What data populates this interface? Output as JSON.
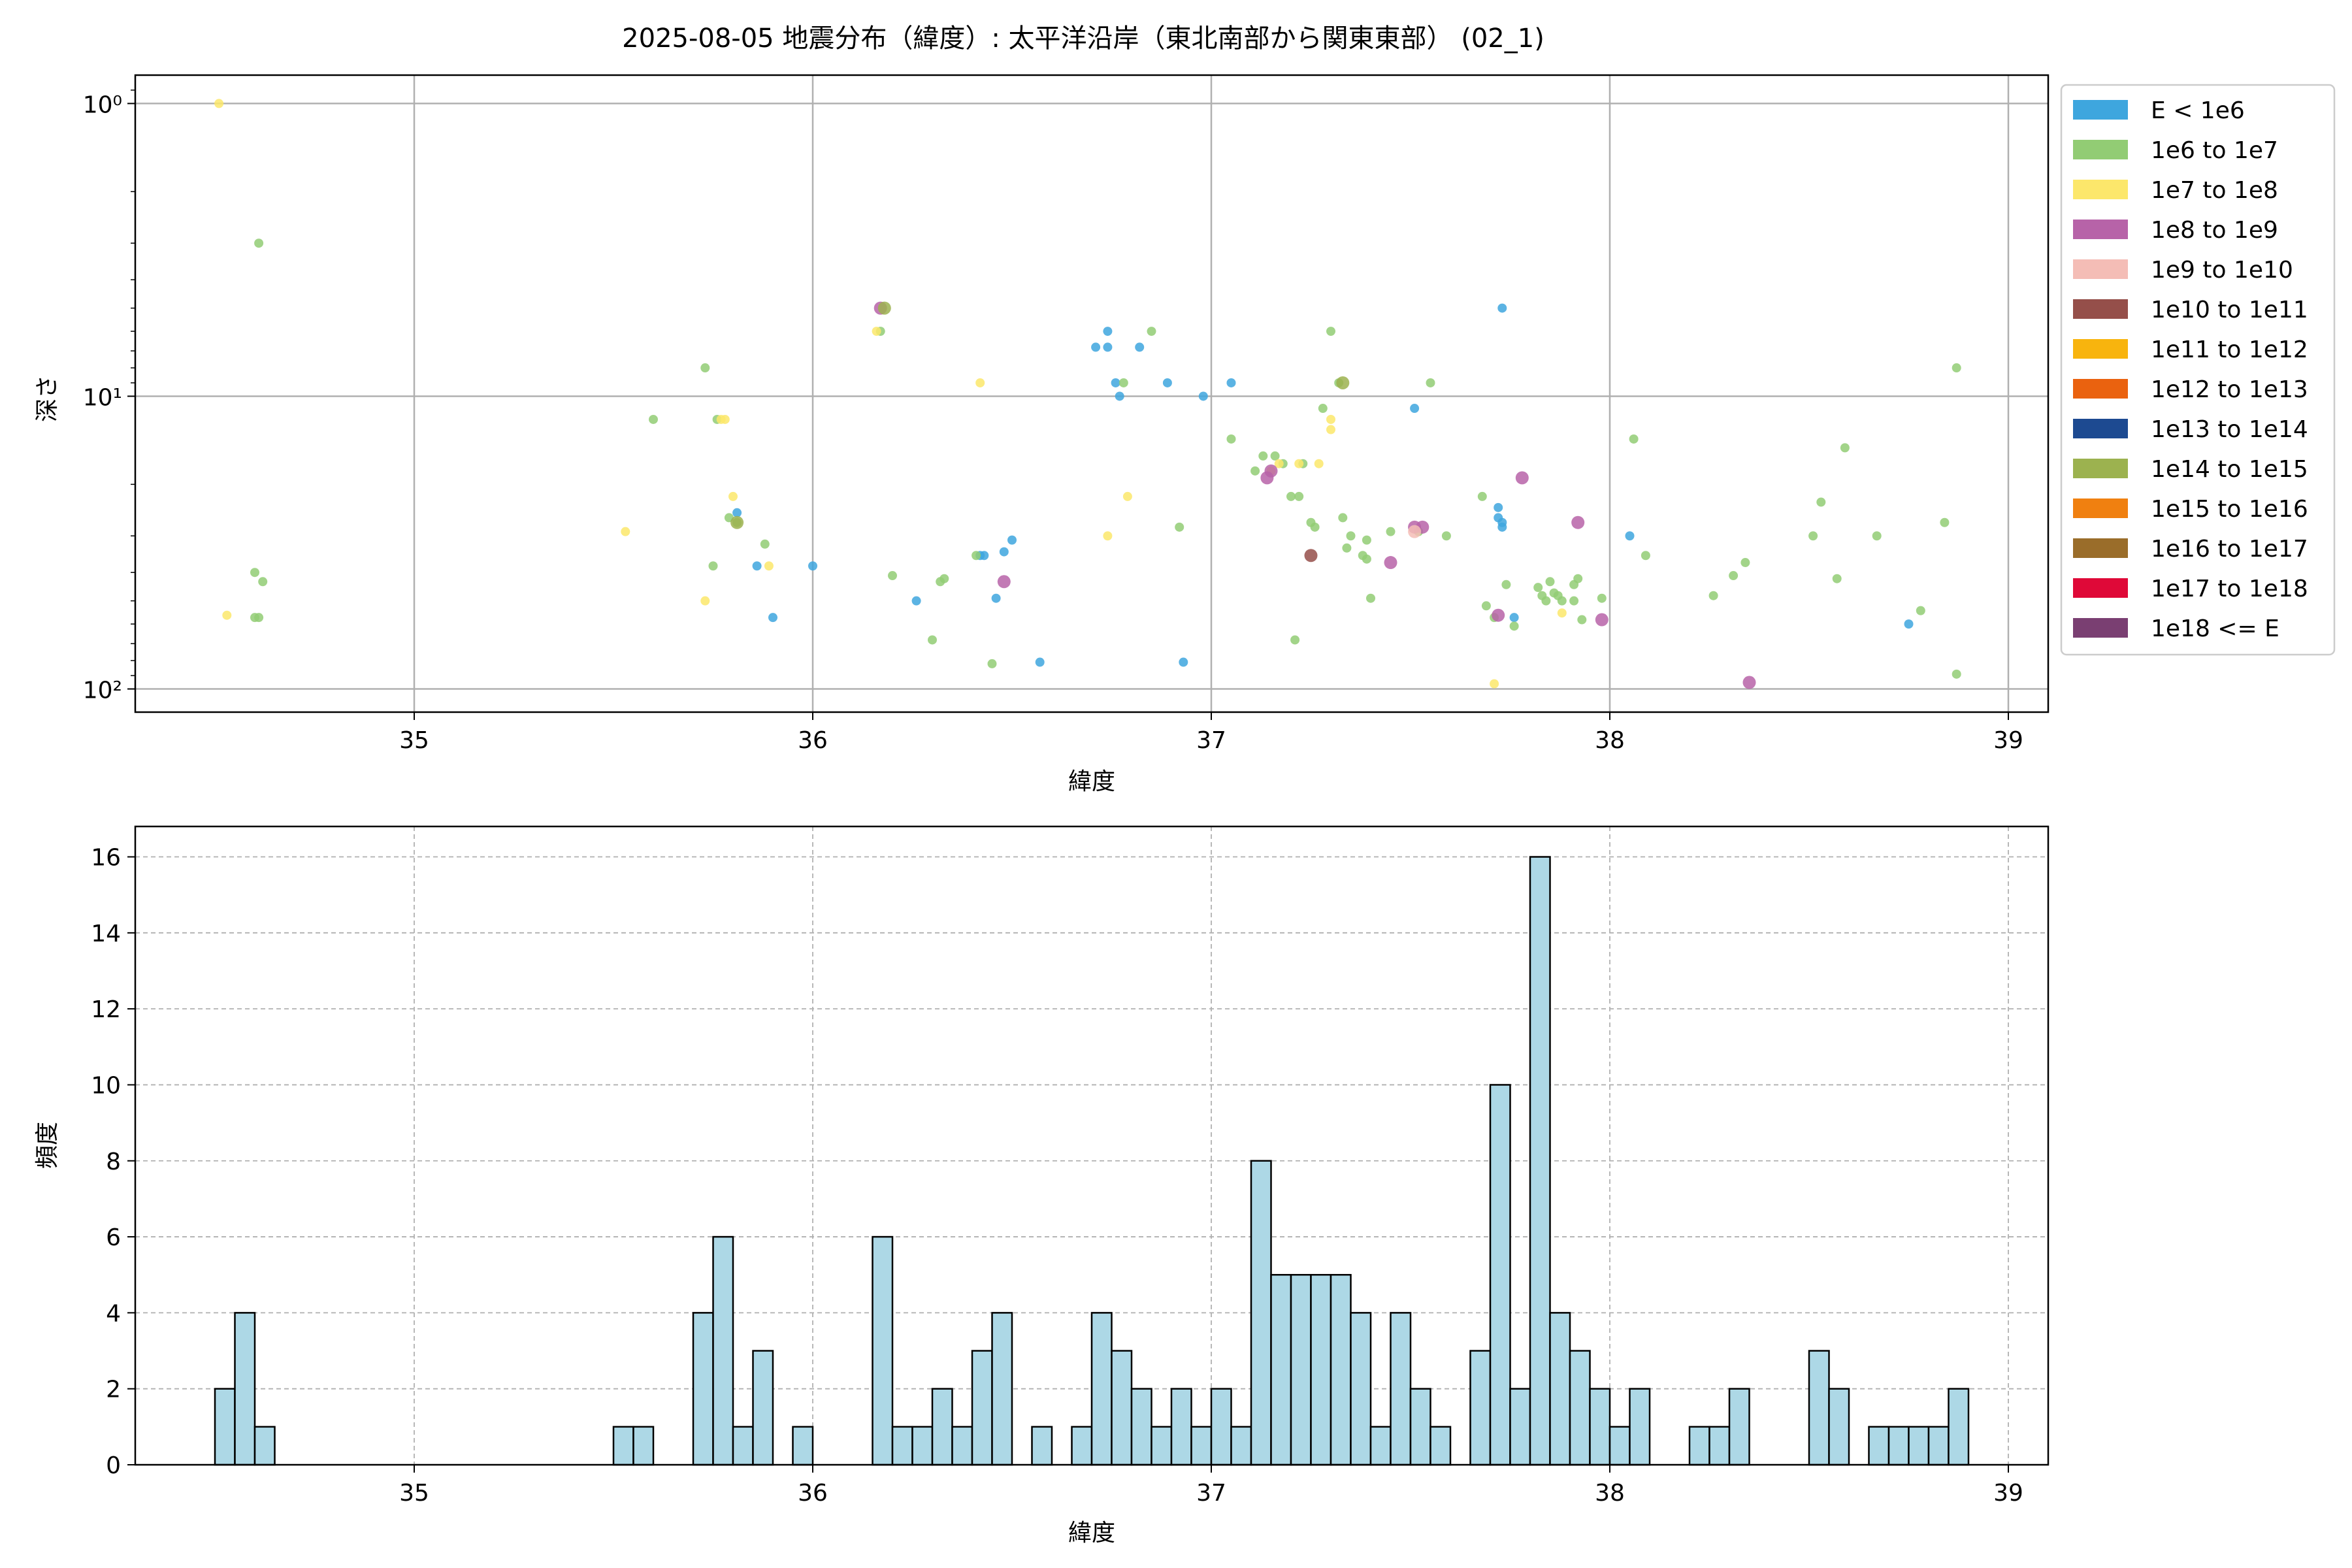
{
  "title": "2025-08-05 地震分布（緯度）: 太平洋沿岸（東北南部から関東東部） (02_1)",
  "chart_data": [
    {
      "type": "scatter",
      "xlabel": "緯度",
      "ylabel": "深さ",
      "xlim": [
        34.3,
        39.1
      ],
      "ylim": [
        120,
        0.8
      ],
      "yscale": "log",
      "y_inverted": true,
      "grid": true,
      "legend_position": "outside-right",
      "x_ticks": [
        35,
        36,
        37,
        38,
        39
      ],
      "x_tick_labels": [
        "35",
        "36",
        "37",
        "38",
        "39"
      ],
      "y_ticks": [
        1,
        10,
        100
      ],
      "y_tick_labels": [
        "10⁰",
        "10¹",
        "10²"
      ],
      "legend": [
        {
          "label": "E < 1e6",
          "color": "#3ea6de"
        },
        {
          "label": "1e6 to 1e7",
          "color": "#92cc74"
        },
        {
          "label": "1e7 to 1e8",
          "color": "#fce76b"
        },
        {
          "label": "1e8 to 1e9",
          "color": "#b763a8"
        },
        {
          "label": "1e9 to 1e10",
          "color": "#f4bdb6"
        },
        {
          "label": "1e10 to 1e11",
          "color": "#954f4a"
        },
        {
          "label": "1e11 to 1e12",
          "color": "#f8b40e"
        },
        {
          "label": "1e12 to 1e13",
          "color": "#ea620f"
        },
        {
          "label": "1e13 to 1e14",
          "color": "#1d4a91"
        },
        {
          "label": "1e14 to 1e15",
          "color": "#9cb24f"
        },
        {
          "label": "1e15 to 1e16",
          "color": "#f08010"
        },
        {
          "label": "1e16 to 1e17",
          "color": "#9a6d2a"
        },
        {
          "label": "1e17 to 1e18",
          "color": "#df0938"
        },
        {
          "label": "1e18 <= E",
          "color": "#7a3f72"
        }
      ],
      "series": [
        {
          "name": "E < 1e6",
          "color": "#3ea6de",
          "points": [
            [
              35.81,
              25
            ],
            [
              35.86,
              38
            ],
            [
              35.9,
              57
            ],
            [
              36.0,
              38
            ],
            [
              36.26,
              50
            ],
            [
              36.42,
              35
            ],
            [
              36.43,
              35
            ],
            [
              36.46,
              49
            ],
            [
              36.48,
              34
            ],
            [
              36.5,
              31
            ],
            [
              36.57,
              81
            ],
            [
              36.71,
              6.8
            ],
            [
              36.74,
              6.8
            ],
            [
              36.74,
              6
            ],
            [
              36.76,
              9
            ],
            [
              36.77,
              10
            ],
            [
              36.82,
              6.8
            ],
            [
              36.89,
              9
            ],
            [
              36.93,
              81
            ],
            [
              36.98,
              10
            ],
            [
              37.05,
              9
            ],
            [
              37.51,
              11
            ],
            [
              37.72,
              24
            ],
            [
              37.72,
              26
            ],
            [
              37.73,
              27
            ],
            [
              37.73,
              28
            ],
            [
              37.76,
              57
            ],
            [
              37.73,
              5
            ],
            [
              38.05,
              30
            ],
            [
              38.75,
              60
            ]
          ]
        },
        {
          "name": "1e6 to 1e7",
          "color": "#92cc74",
          "points": [
            [
              34.61,
              3
            ],
            [
              34.6,
              40
            ],
            [
              34.6,
              57
            ],
            [
              34.62,
              43
            ],
            [
              34.61,
              57
            ],
            [
              35.6,
              12
            ],
            [
              35.73,
              8
            ],
            [
              35.76,
              12
            ],
            [
              35.75,
              38
            ],
            [
              35.79,
              26
            ],
            [
              35.81,
              27
            ],
            [
              35.88,
              32
            ],
            [
              36.17,
              6
            ],
            [
              36.2,
              41
            ],
            [
              36.3,
              68
            ],
            [
              36.32,
              43
            ],
            [
              36.33,
              42
            ],
            [
              36.41,
              35
            ],
            [
              36.45,
              82
            ],
            [
              36.78,
              9
            ],
            [
              36.85,
              6
            ],
            [
              36.92,
              28
            ],
            [
              37.05,
              14
            ],
            [
              37.11,
              18
            ],
            [
              37.13,
              16
            ],
            [
              37.16,
              16
            ],
            [
              37.18,
              17
            ],
            [
              37.2,
              22
            ],
            [
              37.22,
              22
            ],
            [
              37.21,
              68
            ],
            [
              37.23,
              17
            ],
            [
              37.25,
              27
            ],
            [
              37.26,
              28
            ],
            [
              37.28,
              11
            ],
            [
              37.3,
              6
            ],
            [
              37.32,
              9
            ],
            [
              37.33,
              26
            ],
            [
              37.34,
              33
            ],
            [
              37.35,
              30
            ],
            [
              37.38,
              35
            ],
            [
              37.39,
              36
            ],
            [
              37.39,
              31
            ],
            [
              37.4,
              49
            ],
            [
              37.45,
              29
            ],
            [
              37.52,
              29
            ],
            [
              37.55,
              9
            ],
            [
              37.59,
              30
            ],
            [
              37.68,
              22
            ],
            [
              37.69,
              52
            ],
            [
              37.71,
              57
            ],
            [
              37.74,
              44
            ],
            [
              37.76,
              61
            ],
            [
              37.82,
              45
            ],
            [
              37.84,
              50
            ],
            [
              37.83,
              48
            ],
            [
              37.85,
              43
            ],
            [
              37.86,
              47
            ],
            [
              37.87,
              48
            ],
            [
              37.88,
              50
            ],
            [
              37.91,
              44
            ],
            [
              37.92,
              42
            ],
            [
              37.91,
              50
            ],
            [
              37.93,
              58
            ],
            [
              37.98,
              49
            ],
            [
              38.06,
              14
            ],
            [
              38.09,
              35
            ],
            [
              38.26,
              48
            ],
            [
              38.31,
              41
            ],
            [
              38.34,
              37
            ],
            [
              38.51,
              30
            ],
            [
              38.53,
              23
            ],
            [
              38.57,
              42
            ],
            [
              38.59,
              15
            ],
            [
              38.67,
              30
            ],
            [
              38.78,
              54
            ],
            [
              38.84,
              27
            ],
            [
              38.87,
              8
            ],
            [
              38.87,
              89
            ]
          ]
        },
        {
          "name": "1e7 to 1e8",
          "color": "#fce76b",
          "points": [
            [
              34.51,
              1
            ],
            [
              34.53,
              56
            ],
            [
              35.53,
              29
            ],
            [
              35.73,
              50
            ],
            [
              35.77,
              12
            ],
            [
              35.78,
              12
            ],
            [
              35.8,
              22
            ],
            [
              35.89,
              38
            ],
            [
              36.16,
              6
            ],
            [
              36.42,
              9
            ],
            [
              36.74,
              30
            ],
            [
              36.79,
              22
            ],
            [
              37.15,
              18
            ],
            [
              37.17,
              17
            ],
            [
              37.22,
              17
            ],
            [
              37.27,
              17
            ],
            [
              37.3,
              13
            ],
            [
              37.3,
              12
            ],
            [
              37.71,
              96
            ],
            [
              37.88,
              55
            ]
          ]
        },
        {
          "name": "1e8 to 1e9",
          "color": "#b763a8",
          "points": [
            [
              36.17,
              5
            ],
            [
              36.48,
              43
            ],
            [
              37.14,
              19
            ],
            [
              37.15,
              18
            ],
            [
              37.45,
              37
            ],
            [
              37.51,
              28
            ],
            [
              37.53,
              28
            ],
            [
              37.72,
              56
            ],
            [
              37.78,
              19
            ],
            [
              37.92,
              27
            ],
            [
              37.98,
              58
            ],
            [
              38.35,
              95
            ]
          ]
        },
        {
          "name": "1e9 to 1e10",
          "color": "#f4bdb6",
          "points": [
            [
              37.51,
              29
            ]
          ]
        },
        {
          "name": "1e10 to 1e11",
          "color": "#954f4a",
          "points": [
            [
              37.25,
              35
            ]
          ]
        },
        {
          "name": "1e14 to 1e15",
          "color": "#9cb24f",
          "points": [
            [
              36.18,
              5
            ],
            [
              35.81,
              27
            ],
            [
              37.33,
              9
            ]
          ]
        }
      ]
    },
    {
      "type": "bar",
      "xlabel": "緯度",
      "ylabel": "頻度",
      "xlim": [
        34.3,
        39.1
      ],
      "ylim": [
        0,
        16.8
      ],
      "grid": true,
      "grid_style": "dashed",
      "bar_color": "#add8e6",
      "bar_edge_color": "#000000",
      "bin_width": 0.05,
      "bin_start": 34.5,
      "x_ticks": [
        35,
        36,
        37,
        38,
        39
      ],
      "x_tick_labels": [
        "35",
        "36",
        "37",
        "38",
        "39"
      ],
      "y_ticks": [
        0,
        2,
        4,
        6,
        8,
        10,
        12,
        14,
        16
      ],
      "y_tick_labels": [
        "0",
        "2",
        "4",
        "6",
        "8",
        "10",
        "12",
        "14",
        "16"
      ],
      "values": [
        2,
        4,
        1,
        0,
        0,
        0,
        0,
        0,
        0,
        0,
        0,
        0,
        0,
        0,
        0,
        0,
        0,
        0,
        0,
        0,
        1,
        1,
        0,
        0,
        4,
        6,
        1,
        3,
        0,
        1,
        0,
        0,
        0,
        6,
        1,
        1,
        2,
        1,
        3,
        4,
        0,
        1,
        0,
        1,
        4,
        3,
        2,
        1,
        2,
        1,
        2,
        1,
        8,
        5,
        5,
        5,
        5,
        4,
        1,
        4,
        2,
        1,
        0,
        3,
        10,
        2,
        16,
        4,
        3,
        2,
        1,
        2,
        0,
        0,
        1,
        1,
        2,
        0,
        0,
        0,
        3,
        2,
        0,
        1,
        1,
        1,
        1,
        2
      ]
    }
  ]
}
